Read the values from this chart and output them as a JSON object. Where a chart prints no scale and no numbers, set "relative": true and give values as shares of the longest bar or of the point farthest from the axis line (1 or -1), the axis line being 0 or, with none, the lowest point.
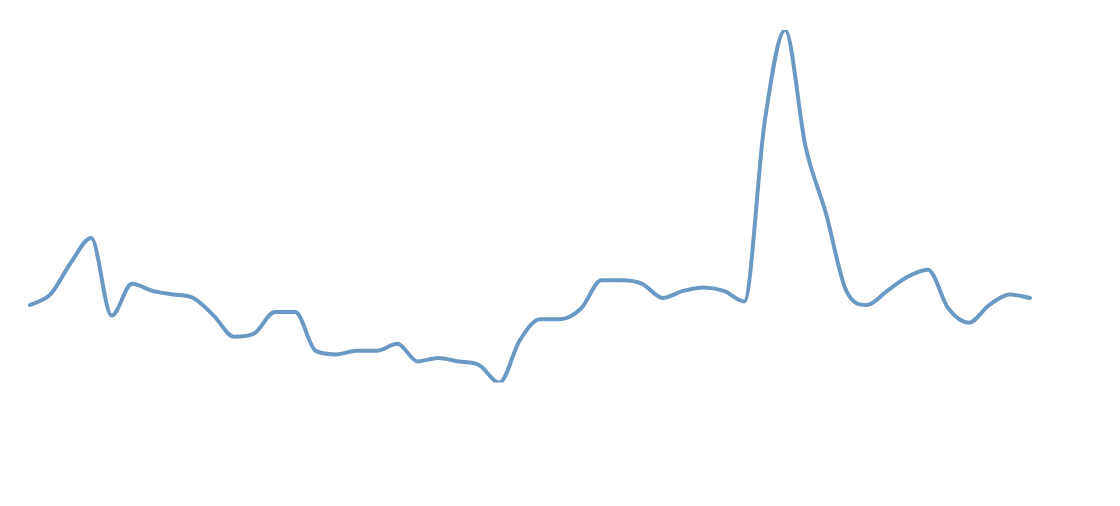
{
  "chart_data": {
    "type": "line",
    "relative": true,
    "legend": false,
    "grid": false,
    "marker": "none",
    "line_style": "solid",
    "categories": [
      null,
      null,
      null,
      null,
      null,
      null,
      null,
      null,
      null,
      null,
      null,
      null,
      null,
      null,
      null,
      null,
      null,
      null,
      null,
      null,
      null,
      null,
      null,
      null,
      null,
      null,
      null,
      null,
      null,
      null,
      null,
      null,
      null,
      null,
      null,
      null,
      null,
      null,
      null,
      null,
      null,
      null,
      null,
      null,
      null,
      null,
      null,
      null,
      null,
      null
    ],
    "series": [
      {
        "color": "#6a9ac4",
        "values": [
          0.22,
          0.25,
          0.34,
          0.41,
          0.19,
          0.28,
          0.26,
          0.25,
          0.24,
          0.19,
          0.13,
          0.14,
          0.2,
          0.2,
          0.09,
          0.08,
          0.09,
          0.09,
          0.11,
          0.06,
          0.07,
          0.06,
          0.05,
          0,
          0.12,
          0.18,
          0.18,
          0.21,
          0.29,
          0.29,
          0.28,
          0.24,
          0.26,
          0.27,
          0.26,
          0.23,
          0.74,
          1,
          0.67,
          0.48,
          0.26,
          0.22,
          0.26,
          0.3,
          0.32,
          0.21,
          0.17,
          0.22,
          0.25,
          0.24
        ]
      }
    ]
  }
}
